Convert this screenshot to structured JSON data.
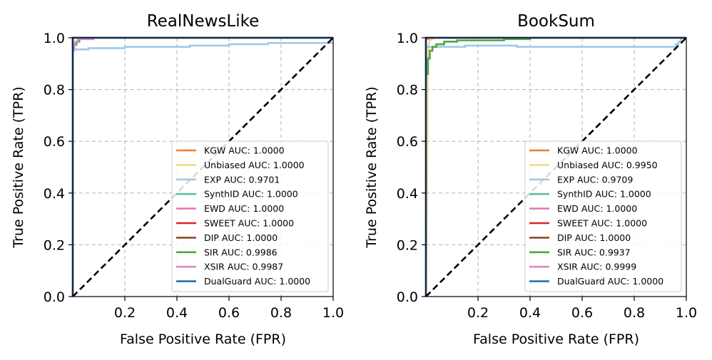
{
  "chart_data": [
    {
      "type": "line",
      "title": "RealNewsLike",
      "xlabel": "False Positive Rate (FPR)",
      "ylabel": "True Positive Rate (TPR)",
      "xlim": [
        0,
        1
      ],
      "ylim": [
        0,
        1
      ],
      "xticks": [
        "0.2",
        "0.4",
        "0.6",
        "0.8",
        "1.0"
      ],
      "yticks": [
        "0.0",
        "0.2",
        "0.4",
        "0.6",
        "0.8",
        "1.0"
      ],
      "grid": true,
      "legend_position": "lower-right",
      "diagonal": true,
      "series": [
        {
          "name": "KGW AUC: 1.0000",
          "color": "#f07f28",
          "points": [
            [
              0,
              0
            ],
            [
              0,
              1
            ],
            [
              1,
              1
            ]
          ]
        },
        {
          "name": "Unbiased AUC: 1.0000",
          "color": "#f0dc82",
          "points": [
            [
              0,
              0
            ],
            [
              0,
              1
            ],
            [
              1,
              1
            ]
          ]
        },
        {
          "name": "EXP AUC: 0.9701",
          "color": "#9ecae9",
          "points": [
            [
              0,
              0
            ],
            [
              0,
              0.955
            ],
            [
              0.06,
              0.955
            ],
            [
              0.06,
              0.96
            ],
            [
              0.2,
              0.96
            ],
            [
              0.2,
              0.965
            ],
            [
              0.45,
              0.965
            ],
            [
              0.45,
              0.97
            ],
            [
              0.6,
              0.97
            ],
            [
              0.6,
              0.975
            ],
            [
              0.75,
              0.975
            ],
            [
              0.75,
              0.98
            ],
            [
              1,
              0.98
            ]
          ]
        },
        {
          "name": "SynthID AUC: 1.0000",
          "color": "#5fbf9f",
          "points": [
            [
              0,
              0
            ],
            [
              0,
              1
            ],
            [
              1,
              1
            ]
          ]
        },
        {
          "name": "EWD AUC: 1.0000",
          "color": "#e07fa5",
          "points": [
            [
              0,
              0
            ],
            [
              0,
              1
            ],
            [
              1,
              1
            ]
          ]
        },
        {
          "name": "SWEET AUC: 1.0000",
          "color": "#d62728",
          "points": [
            [
              0,
              0
            ],
            [
              0,
              1
            ],
            [
              1,
              1
            ]
          ]
        },
        {
          "name": "DIP AUC: 1.0000",
          "color": "#8c4a2a",
          "points": [
            [
              0,
              0
            ],
            [
              0,
              1
            ],
            [
              1,
              1
            ]
          ]
        },
        {
          "name": "SIR AUC: 0.9986",
          "color": "#4ea63e",
          "points": [
            [
              0,
              0
            ],
            [
              0,
              0.96
            ],
            [
              0.005,
              0.96
            ],
            [
              0.005,
              0.975
            ],
            [
              0.015,
              0.975
            ],
            [
              0.015,
              0.985
            ],
            [
              0.025,
              0.985
            ],
            [
              0.025,
              0.995
            ],
            [
              0.04,
              0.995
            ],
            [
              0.04,
              1
            ],
            [
              1,
              1
            ]
          ]
        },
        {
          "name": "XSIR AUC: 0.9987",
          "color": "#d98bc7",
          "points": [
            [
              0,
              0
            ],
            [
              0,
              0.95
            ],
            [
              0.004,
              0.95
            ],
            [
              0.004,
              0.97
            ],
            [
              0.01,
              0.97
            ],
            [
              0.01,
              0.985
            ],
            [
              0.02,
              0.985
            ],
            [
              0.02,
              0.995
            ],
            [
              0.08,
              0.995
            ],
            [
              0.08,
              1
            ],
            [
              0.13,
              1
            ],
            [
              1,
              1
            ]
          ]
        },
        {
          "name": "DualGuard AUC: 1.0000",
          "color": "#2f6fa7",
          "points": [
            [
              0,
              0
            ],
            [
              0,
              1
            ],
            [
              1,
              1
            ]
          ]
        }
      ]
    },
    {
      "type": "line",
      "title": "BookSum",
      "xlabel": "False Positive Rate (FPR)",
      "ylabel": "True Positive Rate (TPR)",
      "xlim": [
        0,
        1
      ],
      "ylim": [
        0,
        1
      ],
      "xticks": [
        "0.2",
        "0.4",
        "0.6",
        "0.8",
        "1.0"
      ],
      "yticks": [
        "0.0",
        "0.2",
        "0.4",
        "0.6",
        "0.8",
        "1.0"
      ],
      "grid": true,
      "legend_position": "lower-right",
      "diagonal": true,
      "series": [
        {
          "name": "KGW AUC: 1.0000",
          "color": "#f07f28",
          "points": [
            [
              0,
              0
            ],
            [
              0,
              1
            ],
            [
              1,
              1
            ]
          ]
        },
        {
          "name": "Unbiased AUC: 0.9950",
          "color": "#f0dc82",
          "points": [
            [
              0,
              0
            ],
            [
              0.005,
              0.5
            ],
            [
              0.006,
              0.8
            ],
            [
              0.008,
              0.92
            ],
            [
              0.01,
              0.97
            ],
            [
              0.015,
              0.99
            ],
            [
              0.03,
              1
            ],
            [
              1,
              1
            ]
          ]
        },
        {
          "name": "EXP AUC: 0.9709",
          "color": "#9ecae9",
          "points": [
            [
              0,
              0
            ],
            [
              0,
              0.965
            ],
            [
              0.15,
              0.965
            ],
            [
              0.15,
              0.97
            ],
            [
              0.35,
              0.97
            ],
            [
              0.35,
              0.965
            ],
            [
              0.96,
              0.965
            ],
            [
              0.96,
              0.975
            ],
            [
              0.97,
              0.975
            ],
            [
              0.97,
              0.985
            ],
            [
              0.98,
              0.985
            ],
            [
              0.98,
              1
            ],
            [
              1,
              1
            ]
          ]
        },
        {
          "name": "SynthID AUC: 1.0000",
          "color": "#5fbf9f",
          "points": [
            [
              0,
              0
            ],
            [
              0,
              1
            ],
            [
              1,
              1
            ]
          ]
        },
        {
          "name": "EWD AUC: 1.0000",
          "color": "#e07fa5",
          "points": [
            [
              0,
              0
            ],
            [
              0,
              1
            ],
            [
              1,
              1
            ]
          ]
        },
        {
          "name": "SWEET AUC: 1.0000",
          "color": "#d62728",
          "points": [
            [
              0,
              0
            ],
            [
              0,
              1
            ],
            [
              1,
              1
            ]
          ]
        },
        {
          "name": "DIP AUC: 1.0000",
          "color": "#8c4a2a",
          "points": [
            [
              0,
              0
            ],
            [
              0,
              1
            ],
            [
              1,
              1
            ]
          ]
        },
        {
          "name": "SIR AUC: 0.9937",
          "color": "#4ea63e",
          "points": [
            [
              0,
              0
            ],
            [
              0,
              0.86
            ],
            [
              0.008,
              0.86
            ],
            [
              0.008,
              0.92
            ],
            [
              0.015,
              0.92
            ],
            [
              0.015,
              0.95
            ],
            [
              0.025,
              0.95
            ],
            [
              0.025,
              0.965
            ],
            [
              0.04,
              0.965
            ],
            [
              0.04,
              0.975
            ],
            [
              0.07,
              0.975
            ],
            [
              0.07,
              0.985
            ],
            [
              0.12,
              0.985
            ],
            [
              0.12,
              0.99
            ],
            [
              0.3,
              0.99
            ],
            [
              0.3,
              0.995
            ],
            [
              0.4,
              0.995
            ],
            [
              0.4,
              1
            ],
            [
              1,
              1
            ]
          ]
        },
        {
          "name": "XSIR AUC: 0.9999",
          "color": "#d98bc7",
          "points": [
            [
              0,
              0
            ],
            [
              0,
              0.995
            ],
            [
              0.01,
              0.995
            ],
            [
              0.01,
              1
            ],
            [
              1,
              1
            ]
          ]
        },
        {
          "name": "DualGuard AUC: 1.0000",
          "color": "#2f6fa7",
          "points": [
            [
              0,
              0
            ],
            [
              0,
              1
            ],
            [
              1,
              1
            ]
          ]
        }
      ]
    }
  ]
}
